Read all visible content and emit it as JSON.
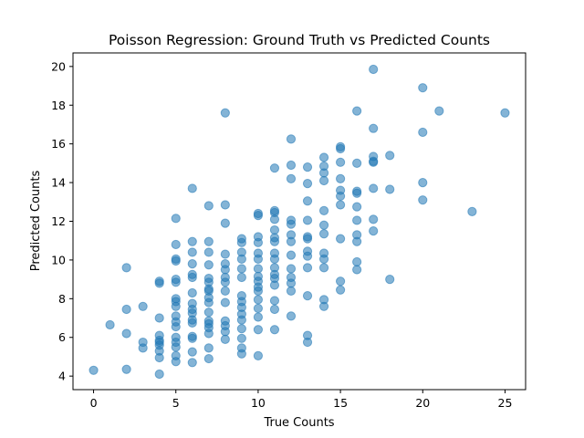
{
  "chart_data": {
    "type": "scatter",
    "title": "Poisson Regression: Ground Truth vs Predicted Counts",
    "xlabel": "True Counts",
    "ylabel": "Predicted Counts",
    "xlim": [
      -1.25,
      26.25
    ],
    "ylim": [
      3.3,
      20.7
    ],
    "xticks": [
      0,
      5,
      10,
      15,
      20,
      25
    ],
    "yticks": [
      4,
      6,
      8,
      10,
      12,
      14,
      16,
      18,
      20
    ],
    "grid": false,
    "legend": "none",
    "color": "#1f77b4",
    "alpha": 0.55,
    "points": [
      {
        "x": 0,
        "y": 4.3
      },
      {
        "x": 1,
        "y": 6.65
      },
      {
        "x": 2,
        "y": 4.35
      },
      {
        "x": 2,
        "y": 6.2
      },
      {
        "x": 2,
        "y": 7.45
      },
      {
        "x": 2,
        "y": 9.6
      },
      {
        "x": 3,
        "y": 5.45
      },
      {
        "x": 3,
        "y": 5.75
      },
      {
        "x": 3,
        "y": 7.6
      },
      {
        "x": 4,
        "y": 4.1
      },
      {
        "x": 4,
        "y": 4.95
      },
      {
        "x": 4,
        "y": 5.3
      },
      {
        "x": 4,
        "y": 5.6
      },
      {
        "x": 4,
        "y": 5.75
      },
      {
        "x": 4,
        "y": 5.85
      },
      {
        "x": 4,
        "y": 6.1
      },
      {
        "x": 4,
        "y": 7.0
      },
      {
        "x": 4,
        "y": 8.8
      },
      {
        "x": 4,
        "y": 8.9
      },
      {
        "x": 5,
        "y": 4.75
      },
      {
        "x": 5,
        "y": 5.05
      },
      {
        "x": 5,
        "y": 5.5
      },
      {
        "x": 5,
        "y": 5.75
      },
      {
        "x": 5,
        "y": 6.0
      },
      {
        "x": 5,
        "y": 6.55
      },
      {
        "x": 5,
        "y": 6.8
      },
      {
        "x": 5,
        "y": 7.1
      },
      {
        "x": 5,
        "y": 7.6
      },
      {
        "x": 5,
        "y": 7.85
      },
      {
        "x": 5,
        "y": 8.0
      },
      {
        "x": 5,
        "y": 8.85
      },
      {
        "x": 5,
        "y": 9.0
      },
      {
        "x": 5,
        "y": 9.95
      },
      {
        "x": 5,
        "y": 10.05
      },
      {
        "x": 5,
        "y": 10.8
      },
      {
        "x": 5,
        "y": 12.15
      },
      {
        "x": 6,
        "y": 4.7
      },
      {
        "x": 6,
        "y": 5.25
      },
      {
        "x": 6,
        "y": 5.95
      },
      {
        "x": 6,
        "y": 6.05
      },
      {
        "x": 6,
        "y": 6.75
      },
      {
        "x": 6,
        "y": 6.9
      },
      {
        "x": 6,
        "y": 7.25
      },
      {
        "x": 6,
        "y": 7.45
      },
      {
        "x": 6,
        "y": 7.75
      },
      {
        "x": 6,
        "y": 8.3
      },
      {
        "x": 6,
        "y": 9.1
      },
      {
        "x": 6,
        "y": 9.25
      },
      {
        "x": 6,
        "y": 9.8
      },
      {
        "x": 6,
        "y": 10.4
      },
      {
        "x": 6,
        "y": 10.95
      },
      {
        "x": 6,
        "y": 13.7
      },
      {
        "x": 7,
        "y": 4.9
      },
      {
        "x": 7,
        "y": 5.45
      },
      {
        "x": 7,
        "y": 6.2
      },
      {
        "x": 7,
        "y": 6.5
      },
      {
        "x": 7,
        "y": 6.7
      },
      {
        "x": 7,
        "y": 6.85
      },
      {
        "x": 7,
        "y": 7.3
      },
      {
        "x": 7,
        "y": 7.8
      },
      {
        "x": 7,
        "y": 8.05
      },
      {
        "x": 7,
        "y": 8.4
      },
      {
        "x": 7,
        "y": 8.5
      },
      {
        "x": 7,
        "y": 8.85
      },
      {
        "x": 7,
        "y": 9.05
      },
      {
        "x": 7,
        "y": 9.75
      },
      {
        "x": 7,
        "y": 10.4
      },
      {
        "x": 7,
        "y": 10.95
      },
      {
        "x": 7,
        "y": 12.8
      },
      {
        "x": 8,
        "y": 5.9
      },
      {
        "x": 8,
        "y": 6.3
      },
      {
        "x": 8,
        "y": 6.6
      },
      {
        "x": 8,
        "y": 6.85
      },
      {
        "x": 8,
        "y": 7.8
      },
      {
        "x": 8,
        "y": 8.4
      },
      {
        "x": 8,
        "y": 8.85
      },
      {
        "x": 8,
        "y": 9.1
      },
      {
        "x": 8,
        "y": 9.5
      },
      {
        "x": 8,
        "y": 9.8
      },
      {
        "x": 8,
        "y": 10.3
      },
      {
        "x": 8,
        "y": 11.9
      },
      {
        "x": 8,
        "y": 12.85
      },
      {
        "x": 8,
        "y": 17.6
      },
      {
        "x": 9,
        "y": 5.15
      },
      {
        "x": 9,
        "y": 5.45
      },
      {
        "x": 9,
        "y": 5.95
      },
      {
        "x": 9,
        "y": 6.45
      },
      {
        "x": 9,
        "y": 6.9
      },
      {
        "x": 9,
        "y": 7.2
      },
      {
        "x": 9,
        "y": 7.55
      },
      {
        "x": 9,
        "y": 7.85
      },
      {
        "x": 9,
        "y": 8.15
      },
      {
        "x": 9,
        "y": 9.1
      },
      {
        "x": 9,
        "y": 9.55
      },
      {
        "x": 9,
        "y": 10.05
      },
      {
        "x": 9,
        "y": 10.4
      },
      {
        "x": 9,
        "y": 10.9
      },
      {
        "x": 9,
        "y": 11.1
      },
      {
        "x": 10,
        "y": 5.05
      },
      {
        "x": 10,
        "y": 6.4
      },
      {
        "x": 10,
        "y": 7.05
      },
      {
        "x": 10,
        "y": 7.5
      },
      {
        "x": 10,
        "y": 7.95
      },
      {
        "x": 10,
        "y": 8.4
      },
      {
        "x": 10,
        "y": 8.6
      },
      {
        "x": 10,
        "y": 8.9
      },
      {
        "x": 10,
        "y": 9.15
      },
      {
        "x": 10,
        "y": 9.55
      },
      {
        "x": 10,
        "y": 10.05
      },
      {
        "x": 10,
        "y": 10.35
      },
      {
        "x": 10,
        "y": 10.9
      },
      {
        "x": 10,
        "y": 11.2
      },
      {
        "x": 10,
        "y": 12.3
      },
      {
        "x": 10,
        "y": 12.4
      },
      {
        "x": 11,
        "y": 6.4
      },
      {
        "x": 11,
        "y": 7.45
      },
      {
        "x": 11,
        "y": 7.9
      },
      {
        "x": 11,
        "y": 8.7
      },
      {
        "x": 11,
        "y": 9.05
      },
      {
        "x": 11,
        "y": 9.25
      },
      {
        "x": 11,
        "y": 9.6
      },
      {
        "x": 11,
        "y": 10.05
      },
      {
        "x": 11,
        "y": 10.35
      },
      {
        "x": 11,
        "y": 10.95
      },
      {
        "x": 11,
        "y": 11.15
      },
      {
        "x": 11,
        "y": 11.55
      },
      {
        "x": 11,
        "y": 12.1
      },
      {
        "x": 11,
        "y": 12.45
      },
      {
        "x": 11,
        "y": 12.55
      },
      {
        "x": 11,
        "y": 14.75
      },
      {
        "x": 12,
        "y": 7.1
      },
      {
        "x": 12,
        "y": 8.4
      },
      {
        "x": 12,
        "y": 8.8
      },
      {
        "x": 12,
        "y": 9.1
      },
      {
        "x": 12,
        "y": 9.55
      },
      {
        "x": 12,
        "y": 10.25
      },
      {
        "x": 12,
        "y": 10.95
      },
      {
        "x": 12,
        "y": 11.3
      },
      {
        "x": 12,
        "y": 11.85
      },
      {
        "x": 12,
        "y": 12.05
      },
      {
        "x": 12,
        "y": 14.2
      },
      {
        "x": 12,
        "y": 14.9
      },
      {
        "x": 12,
        "y": 16.25
      },
      {
        "x": 13,
        "y": 5.75
      },
      {
        "x": 13,
        "y": 6.1
      },
      {
        "x": 13,
        "y": 8.15
      },
      {
        "x": 13,
        "y": 9.6
      },
      {
        "x": 13,
        "y": 10.2
      },
      {
        "x": 13,
        "y": 10.45
      },
      {
        "x": 13,
        "y": 11.1
      },
      {
        "x": 13,
        "y": 11.2
      },
      {
        "x": 13,
        "y": 12.05
      },
      {
        "x": 13,
        "y": 13.05
      },
      {
        "x": 13,
        "y": 13.95
      },
      {
        "x": 13,
        "y": 14.8
      },
      {
        "x": 14,
        "y": 7.6
      },
      {
        "x": 14,
        "y": 7.95
      },
      {
        "x": 14,
        "y": 9.6
      },
      {
        "x": 14,
        "y": 10.05
      },
      {
        "x": 14,
        "y": 10.35
      },
      {
        "x": 14,
        "y": 11.35
      },
      {
        "x": 14,
        "y": 11.8
      },
      {
        "x": 14,
        "y": 12.55
      },
      {
        "x": 14,
        "y": 14.1
      },
      {
        "x": 14,
        "y": 14.5
      },
      {
        "x": 14,
        "y": 14.85
      },
      {
        "x": 14,
        "y": 15.3
      },
      {
        "x": 15,
        "y": 8.45
      },
      {
        "x": 15,
        "y": 8.9
      },
      {
        "x": 15,
        "y": 11.1
      },
      {
        "x": 15,
        "y": 12.85
      },
      {
        "x": 15,
        "y": 13.3
      },
      {
        "x": 15,
        "y": 13.6
      },
      {
        "x": 15,
        "y": 14.2
      },
      {
        "x": 15,
        "y": 15.05
      },
      {
        "x": 15,
        "y": 15.75
      },
      {
        "x": 15,
        "y": 15.85
      },
      {
        "x": 16,
        "y": 9.5
      },
      {
        "x": 16,
        "y": 9.9
      },
      {
        "x": 16,
        "y": 10.95
      },
      {
        "x": 16,
        "y": 11.3
      },
      {
        "x": 16,
        "y": 12.05
      },
      {
        "x": 16,
        "y": 12.75
      },
      {
        "x": 16,
        "y": 13.45
      },
      {
        "x": 16,
        "y": 13.55
      },
      {
        "x": 16,
        "y": 15.0
      },
      {
        "x": 16,
        "y": 17.7
      },
      {
        "x": 17,
        "y": 11.5
      },
      {
        "x": 17,
        "y": 12.1
      },
      {
        "x": 17,
        "y": 13.7
      },
      {
        "x": 17,
        "y": 15.05
      },
      {
        "x": 17,
        "y": 15.1
      },
      {
        "x": 17,
        "y": 15.35
      },
      {
        "x": 17,
        "y": 16.8
      },
      {
        "x": 17,
        "y": 19.85
      },
      {
        "x": 18,
        "y": 9.0
      },
      {
        "x": 18,
        "y": 13.65
      },
      {
        "x": 18,
        "y": 15.4
      },
      {
        "x": 20,
        "y": 13.1
      },
      {
        "x": 20,
        "y": 14.0
      },
      {
        "x": 20,
        "y": 16.6
      },
      {
        "x": 20,
        "y": 18.9
      },
      {
        "x": 21,
        "y": 17.7
      },
      {
        "x": 23,
        "y": 12.5
      },
      {
        "x": 25,
        "y": 17.6
      }
    ]
  }
}
